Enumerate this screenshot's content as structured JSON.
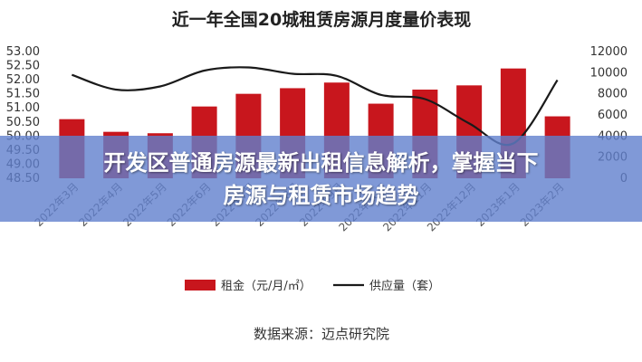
{
  "chart_data": {
    "type": "bar",
    "title": "近一年全国20城租赁房源月度量价表现",
    "categories": [
      "2022年3月",
      "2022年4月",
      "2022年5月",
      "2022年6月",
      "2022年7月",
      "2022年8月",
      "2022年9月",
      "2022年10月",
      "2022年11月",
      "2022年12月",
      "2023年1月",
      "2023年2月"
    ],
    "series": [
      {
        "name": "租金（元/月/㎡）",
        "type": "bar",
        "axis": "left",
        "color": "#c8161d",
        "values": [
          50.6,
          50.15,
          50.1,
          51.05,
          51.5,
          51.7,
          51.9,
          51.15,
          51.65,
          51.8,
          52.4,
          50.7
        ]
      },
      {
        "name": "供应量（套）",
        "type": "line",
        "axis": "right",
        "color": "#1a1a1a",
        "values": [
          9800,
          8400,
          8700,
          10200,
          10500,
          9900,
          9700,
          7900,
          7500,
          5200,
          3300,
          9300
        ]
      }
    ],
    "y_left": {
      "min": 48.5,
      "max": 53.0,
      "ticks": [
        "48.50",
        "49.00",
        "49.50",
        "50.00",
        "50.50",
        "51.00",
        "51.50",
        "52.00",
        "52.50",
        "53.00"
      ]
    },
    "y_right": {
      "min": 0,
      "max": 12000,
      "ticks": [
        "0",
        "2000",
        "4000",
        "6000",
        "8000",
        "10000",
        "12000"
      ]
    },
    "grid": false,
    "legend_position": "bottom"
  },
  "source": "数据来源：迈点研究院",
  "banner": {
    "line1": "开发区普通房源最新出租信息解析，掌握当下",
    "line2": "房源与租赁市场趋势"
  }
}
